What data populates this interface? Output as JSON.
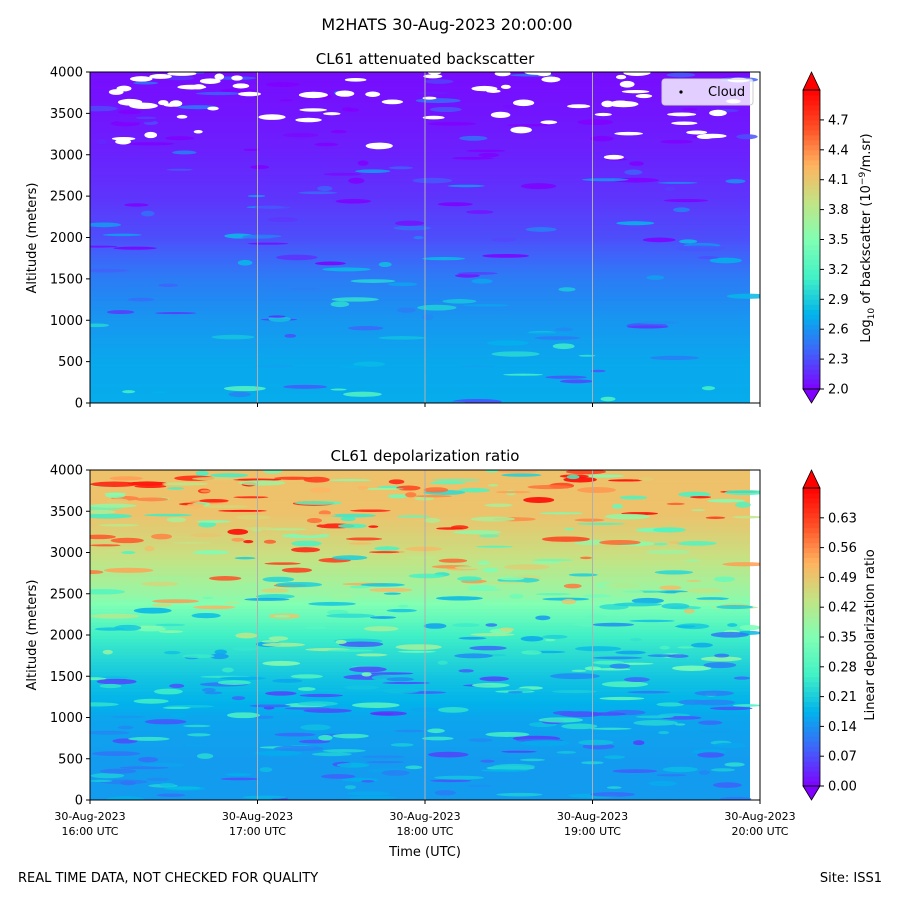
{
  "title": "M2HATS 30-Aug-2023 20:00:00",
  "footer": {
    "left": "REAL TIME DATA, NOT CHECKED FOR QUALITY",
    "right": "Site: ISS1"
  },
  "colors": {
    "rainbow": [
      "#8000ff",
      "#4062fa",
      "#01b3eb",
      "#42f1c5",
      "#80ffb4",
      "#c2e485",
      "#ffb360",
      "#ff4f26",
      "#ff0000"
    ],
    "cloud_marker": "#ffffff"
  },
  "chart_data": [
    {
      "type": "heatmap",
      "title": "CL61 attenuated backscatter",
      "ylabel": "Altitude (meters)",
      "ylim": [
        0,
        4000
      ],
      "yticks": [
        "0",
        "500",
        "1000",
        "1500",
        "2000",
        "2500",
        "3000",
        "3500",
        "4000"
      ],
      "x_range": [
        "30-Aug-2023 16:00 UTC",
        "30-Aug-2023 20:00 UTC"
      ],
      "grid": "vertical lines at 17:00, 18:00, 19:00",
      "legend": {
        "label": "Cloud",
        "placement": "top-right"
      },
      "colorbar": {
        "label_prefix": "Log",
        "label_sub": "10",
        "label_mid": " of backscatter (10",
        "label_sup": "−9",
        "label_suffix": "/m.sr)",
        "range": [
          2.0,
          5.0
        ],
        "ticks": [
          "2.0",
          "2.3",
          "2.6",
          "2.9",
          "3.2",
          "3.5",
          "3.8",
          "4.1",
          "4.4",
          "4.7"
        ],
        "extend": "both"
      },
      "profile": [
        {
          "altitude": 0,
          "value": 2.72
        },
        {
          "altitude": 500,
          "value": 2.7
        },
        {
          "altitude": 1000,
          "value": 2.62
        },
        {
          "altitude": 1500,
          "value": 2.5
        },
        {
          "altitude": 2000,
          "value": 2.3
        },
        {
          "altitude": 2500,
          "value": 2.2
        },
        {
          "altitude": 3000,
          "value": 2.13
        },
        {
          "altitude": 3500,
          "value": 2.08
        },
        {
          "altitude": 4000,
          "value": 2.05
        }
      ],
      "cloud_altitude_range": [
        2700,
        4000
      ]
    },
    {
      "type": "heatmap",
      "title": "CL61 depolarization ratio",
      "ylabel": "Altitude (meters)",
      "xlabel": "Time (UTC)",
      "ylim": [
        0,
        4000
      ],
      "yticks": [
        "0",
        "500",
        "1000",
        "1500",
        "2000",
        "2500",
        "3000",
        "3500",
        "4000"
      ],
      "xticks": [
        {
          "date": "30-Aug-2023",
          "time": "16:00 UTC"
        },
        {
          "date": "30-Aug-2023",
          "time": "17:00 UTC"
        },
        {
          "date": "30-Aug-2023",
          "time": "18:00 UTC"
        },
        {
          "date": "30-Aug-2023",
          "time": "19:00 UTC"
        },
        {
          "date": "30-Aug-2023",
          "time": "20:00 UTC"
        }
      ],
      "grid": "vertical lines at 17:00, 18:00, 19:00",
      "colorbar": {
        "label": "Linear depolarization ratio",
        "range": [
          0.0,
          0.7
        ],
        "ticks": [
          "0.00",
          "0.07",
          "0.14",
          "0.21",
          "0.28",
          "0.35",
          "0.42",
          "0.49",
          "0.56",
          "0.63"
        ],
        "extend": "both"
      },
      "profile": [
        {
          "altitude": 0,
          "value": 0.15
        },
        {
          "altitude": 500,
          "value": 0.15
        },
        {
          "altitude": 1000,
          "value": 0.16
        },
        {
          "altitude": 1500,
          "value": 0.2
        },
        {
          "altitude": 2000,
          "value": 0.26
        },
        {
          "altitude": 2500,
          "value": 0.38
        },
        {
          "altitude": 3000,
          "value": 0.45
        },
        {
          "altitude": 3500,
          "value": 0.5
        },
        {
          "altitude": 4000,
          "value": 0.5
        }
      ]
    }
  ]
}
